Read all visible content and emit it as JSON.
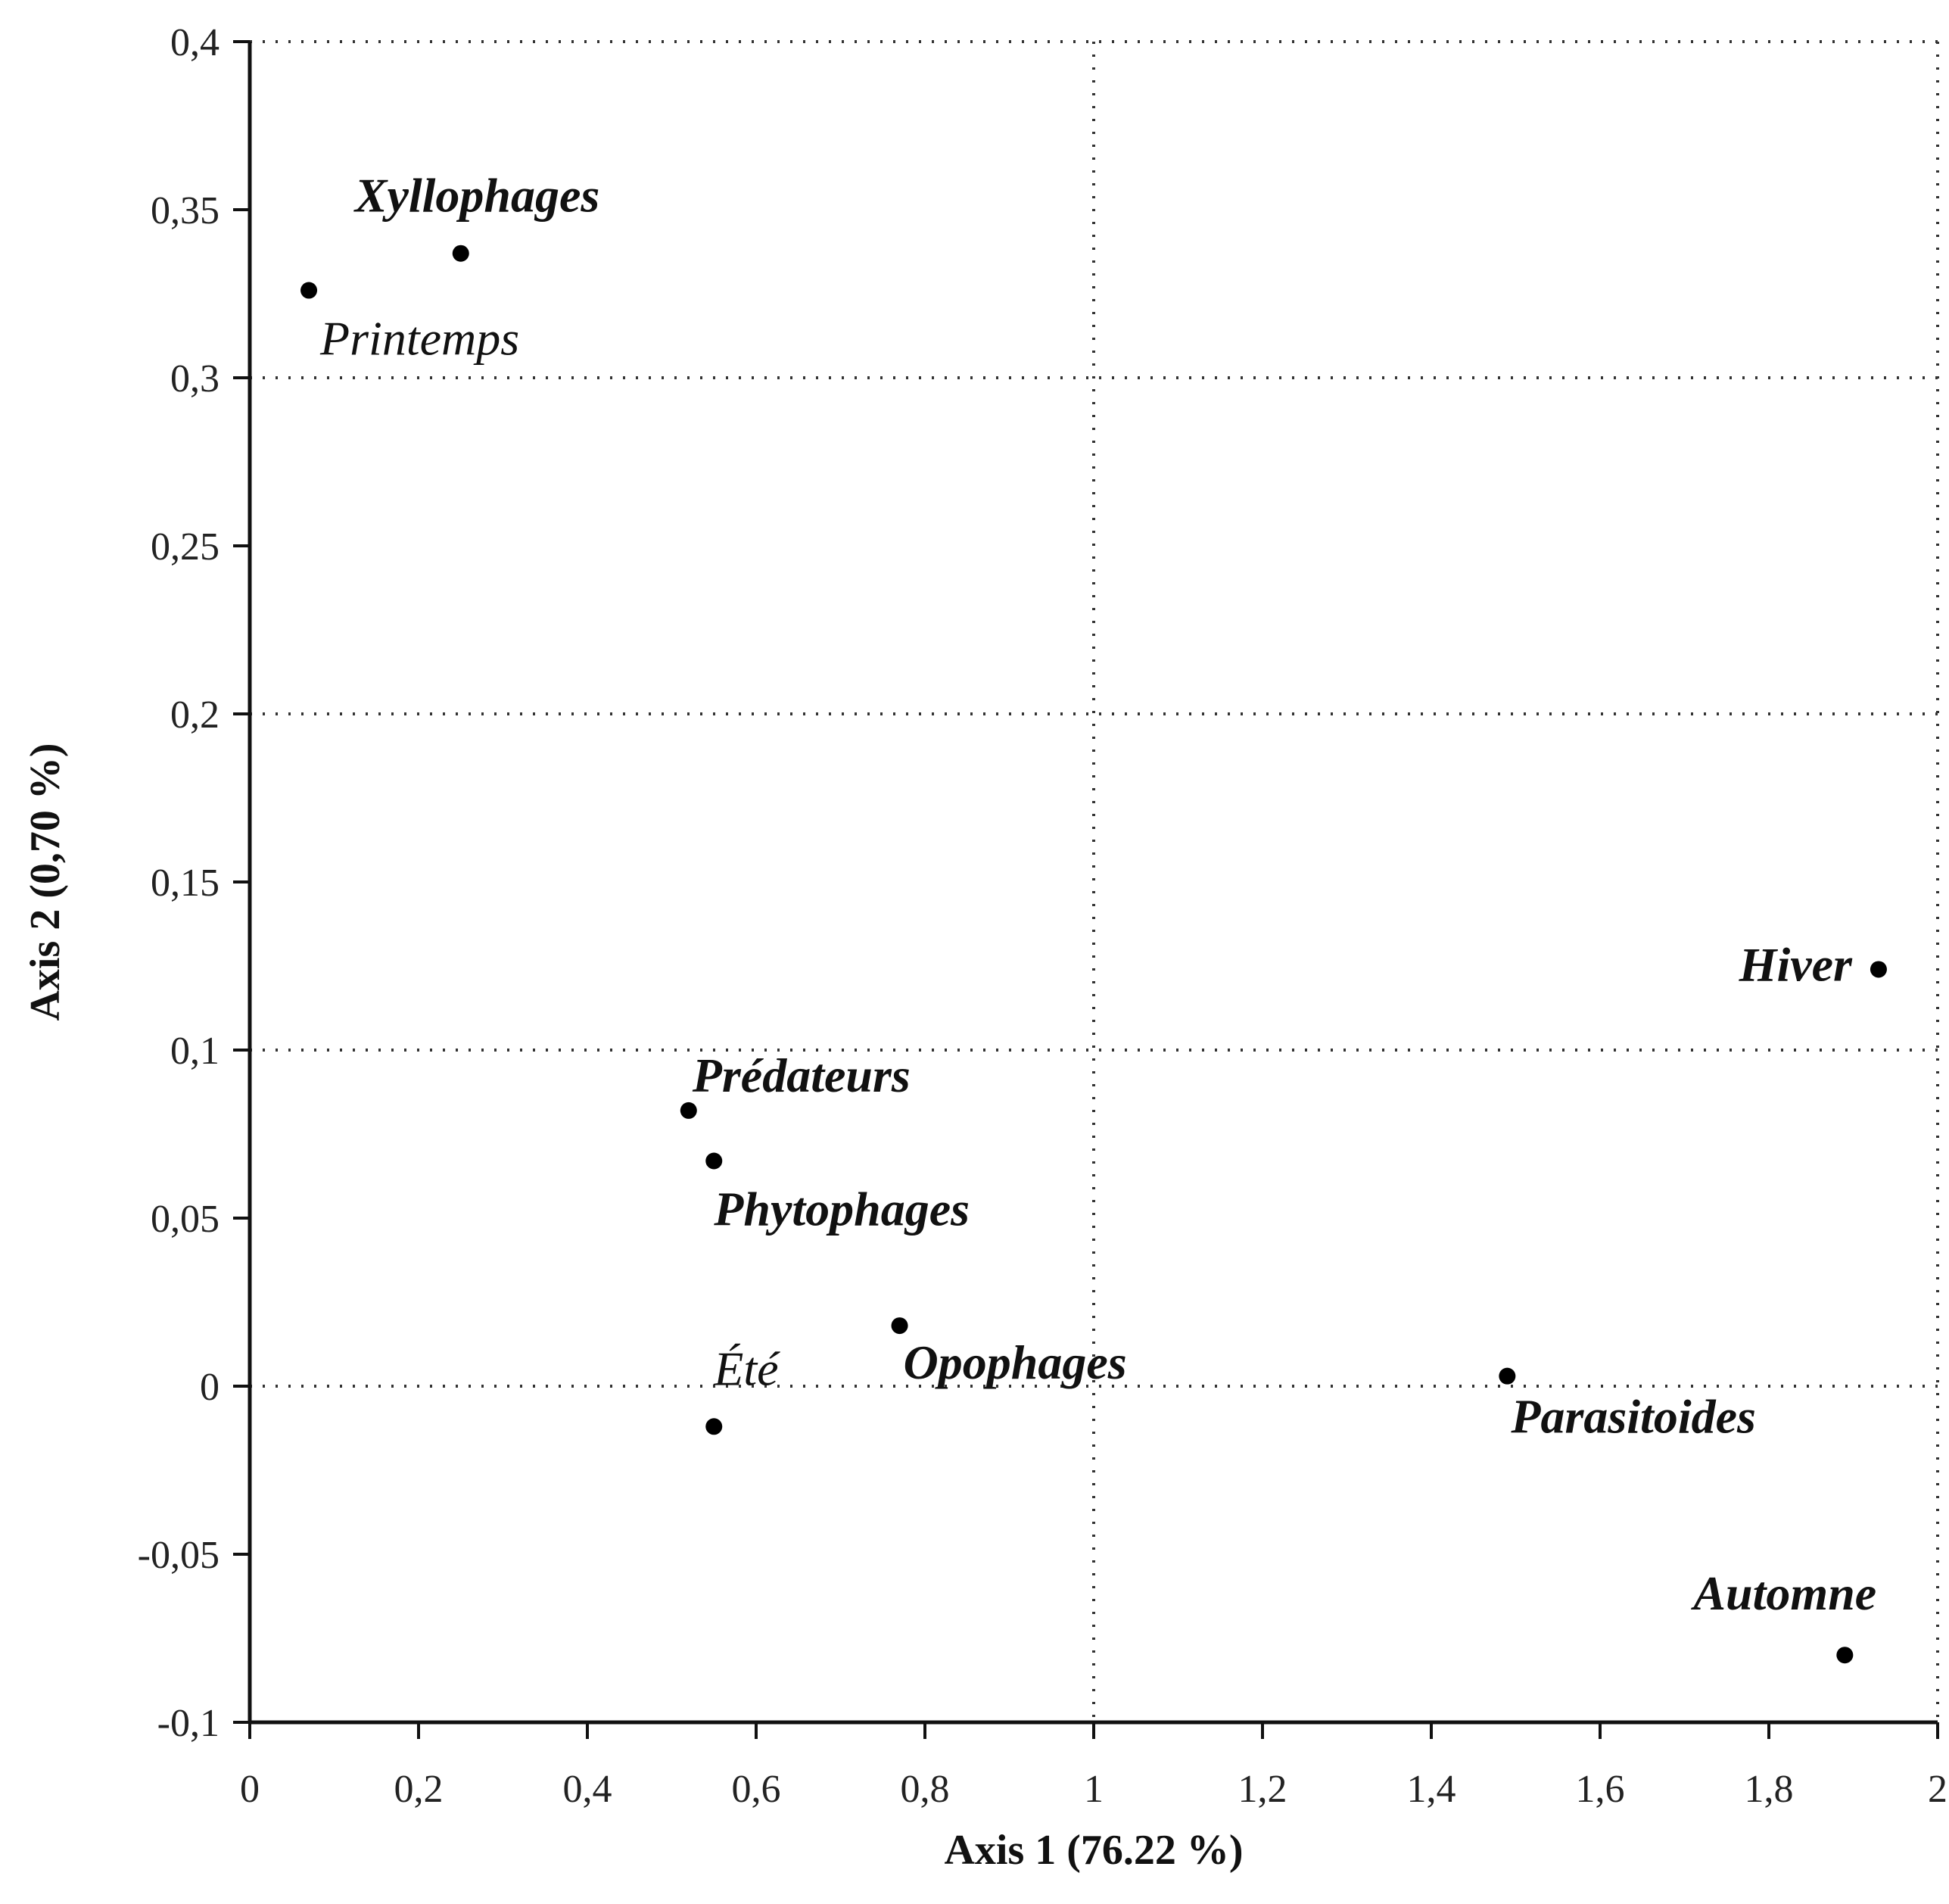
{
  "chart_data": {
    "type": "scatter",
    "xlabel": "Axis 1 (76.22 %)",
    "ylabel": "Axis 2 (0,70 %)",
    "xlim": [
      0,
      2
    ],
    "ylim": [
      -0.1,
      0.4
    ],
    "x_ticks": [
      0,
      0.2,
      0.4,
      0.6,
      0.8,
      1,
      1.2,
      1.4,
      1.6,
      1.8,
      2
    ],
    "x_tick_labels": [
      "0",
      "0,2",
      "0,4",
      "0,6",
      "0,8",
      "1",
      "1,2",
      "1,4",
      "1,6",
      "1,8",
      "2"
    ],
    "y_ticks": [
      0.4,
      0.35,
      0.3,
      0.25,
      0.2,
      0.15,
      0.1,
      0.05,
      0,
      -0.05,
      -0.1
    ],
    "y_tick_labels": [
      "0,4",
      "0,35",
      "0,3",
      "0,25",
      "0,2",
      "0,15",
      "0,1",
      "0,05",
      "0",
      "-0,05",
      "-0,1"
    ],
    "grid": "dotted lines at y = 0, 0.1, 0.2, 0.3, 0.4 and x = 1, 2",
    "points": [
      {
        "label": "Xyllophages",
        "x": 0.25,
        "y": 0.337
      },
      {
        "label": "Printemps",
        "x": 0.07,
        "y": 0.326
      },
      {
        "label": "Prédateurs",
        "x": 0.52,
        "y": 0.082
      },
      {
        "label": "Phytophages",
        "x": 0.55,
        "y": 0.067
      },
      {
        "label": "Opophages",
        "x": 0.77,
        "y": 0.018
      },
      {
        "label": "Été",
        "x": 0.55,
        "y": -0.012
      },
      {
        "label": "Parasitoides",
        "x": 1.49,
        "y": 0.003
      },
      {
        "label": "Hiver",
        "x": 1.93,
        "y": 0.124
      },
      {
        "label": "Automne",
        "x": 1.89,
        "y": -0.08
      }
    ]
  }
}
